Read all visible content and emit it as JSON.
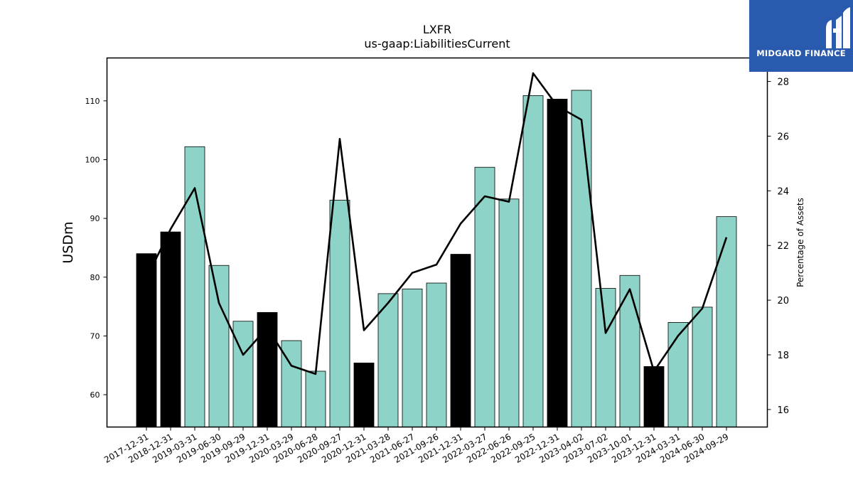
{
  "brand": {
    "name": "MIDGARD FINANCE",
    "bg_color": "#2a5aad"
  },
  "chart_data": {
    "type": "bar",
    "title": "LXFR",
    "subtitle": "us-gaap:LiabilitiesCurrent",
    "ylabel": "USDm",
    "y2label": "Percentage of Assets",
    "ylim": [
      54.5,
      117.3
    ],
    "y2lim": [
      15.36,
      28.86
    ],
    "yticks": [
      60,
      70,
      80,
      90,
      100,
      110
    ],
    "y2ticks": [
      16,
      18,
      20,
      22,
      24,
      26,
      28
    ],
    "grid": false,
    "colors": {
      "annual": "#000000",
      "quarterly": "#8dd3c7",
      "line": "#000000"
    },
    "categories": [
      "2017-12-31",
      "2018-12-31",
      "2019-03-31",
      "2019-06-30",
      "2019-09-29",
      "2019-12-31",
      "2020-03-29",
      "2020-06-28",
      "2020-09-27",
      "2020-12-31",
      "2021-03-28",
      "2021-06-27",
      "2021-09-26",
      "2021-12-31",
      "2022-03-27",
      "2022-06-26",
      "2022-09-25",
      "2022-12-31",
      "2023-04-02",
      "2023-07-02",
      "2023-10-01",
      "2023-12-31",
      "2024-03-31",
      "2024-06-30",
      "2024-09-29"
    ],
    "series": [
      {
        "values": [
          84.0,
          87.7,
          102.2,
          82.0,
          72.5,
          74.0,
          69.2,
          64.0,
          93.1,
          65.4,
          77.2,
          78.0,
          79.0,
          83.9,
          98.7,
          93.3,
          110.9,
          110.3,
          111.8,
          78.1,
          80.3,
          64.8,
          72.3,
          74.9,
          90.3
        ],
        "is_annual": [
          true,
          true,
          false,
          false,
          false,
          true,
          false,
          false,
          false,
          true,
          false,
          false,
          false,
          true,
          false,
          false,
          false,
          true,
          false,
          false,
          false,
          true,
          false,
          false,
          false
        ]
      },
      {
        "axis": "right",
        "type": "line",
        "values": [
          20.8,
          22.6,
          24.1,
          19.9,
          18.0,
          19.0,
          17.6,
          17.3,
          25.9,
          18.9,
          19.9,
          21.0,
          21.3,
          22.8,
          23.8,
          23.6,
          28.3,
          27.1,
          26.6,
          18.8,
          20.4,
          17.4,
          18.7,
          19.7,
          22.3
        ]
      }
    ]
  }
}
